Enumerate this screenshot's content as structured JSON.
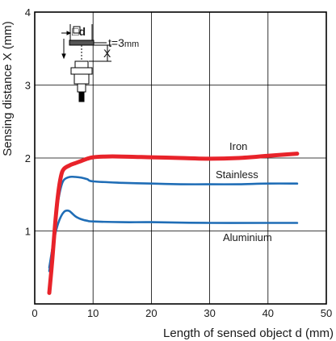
{
  "chart_data": {
    "type": "line",
    "xlabel": "Length of sensed object d (mm)",
    "ylabel": "Sensing distance X (mm)",
    "xlim": [
      0,
      50
    ],
    "ylim": [
      0,
      4
    ],
    "xticks": [
      0,
      10,
      20,
      30,
      40,
      50
    ],
    "yticks": [
      1,
      2,
      3,
      4
    ],
    "grid": true,
    "series": [
      {
        "name": "Iron",
        "color": "#e8232a",
        "points": [
          [
            2.5,
            0.15
          ],
          [
            3,
            0.6
          ],
          [
            3.5,
            1.1
          ],
          [
            4,
            1.5
          ],
          [
            4.5,
            1.75
          ],
          [
            5,
            1.85
          ],
          [
            6,
            1.9
          ],
          [
            7,
            1.93
          ],
          [
            8,
            1.96
          ],
          [
            9,
            1.99
          ],
          [
            10,
            2.01
          ],
          [
            12,
            2.02
          ],
          [
            15,
            2.02
          ],
          [
            20,
            2.01
          ],
          [
            25,
            2.0
          ],
          [
            30,
            1.99
          ],
          [
            35,
            2.0
          ],
          [
            40,
            2.03
          ],
          [
            45,
            2.06
          ]
        ]
      },
      {
        "name": "Stainless",
        "color": "#1f6db6",
        "points": [
          [
            2.5,
            0.45
          ],
          [
            3,
            0.75
          ],
          [
            3.5,
            1.1
          ],
          [
            4,
            1.4
          ],
          [
            4.5,
            1.6
          ],
          [
            5,
            1.7
          ],
          [
            6,
            1.74
          ],
          [
            7,
            1.74
          ],
          [
            8,
            1.73
          ],
          [
            9,
            1.71
          ],
          [
            10,
            1.68
          ],
          [
            15,
            1.66
          ],
          [
            20,
            1.65
          ],
          [
            25,
            1.64
          ],
          [
            30,
            1.64
          ],
          [
            35,
            1.64
          ],
          [
            40,
            1.65
          ],
          [
            45,
            1.65
          ]
        ]
      },
      {
        "name": "Aluminium",
        "color": "#1f6db6",
        "points": [
          [
            2.5,
            0.5
          ],
          [
            3,
            0.75
          ],
          [
            3.5,
            0.95
          ],
          [
            4,
            1.1
          ],
          [
            4.5,
            1.2
          ],
          [
            5,
            1.26
          ],
          [
            5.5,
            1.28
          ],
          [
            6,
            1.27
          ],
          [
            7,
            1.2
          ],
          [
            8,
            1.16
          ],
          [
            9,
            1.14
          ],
          [
            10,
            1.13
          ],
          [
            15,
            1.12
          ],
          [
            20,
            1.12
          ],
          [
            30,
            1.11
          ],
          [
            40,
            1.11
          ],
          [
            45,
            1.11
          ]
        ]
      }
    ],
    "annotations": {
      "square_label": "□d",
      "thickness_label": "t=3",
      "thickness_unit": "mm",
      "distance_label": "X"
    }
  }
}
